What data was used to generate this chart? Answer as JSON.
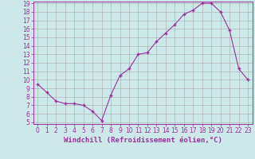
{
  "x": [
    0,
    1,
    2,
    3,
    4,
    5,
    6,
    7,
    8,
    9,
    10,
    11,
    12,
    13,
    14,
    15,
    16,
    17,
    18,
    19,
    20,
    21,
    22,
    23
  ],
  "y": [
    9.5,
    8.5,
    7.5,
    7.2,
    7.2,
    7.0,
    6.3,
    5.2,
    8.2,
    10.5,
    11.3,
    13.0,
    13.2,
    14.5,
    15.5,
    16.5,
    17.7,
    18.2,
    19.0,
    19.0,
    18.0,
    15.8,
    11.3,
    10.0
  ],
  "line_color": "#993399",
  "marker": "+",
  "marker_size": 3.5,
  "marker_lw": 1.0,
  "bg_color": "#cce8e8",
  "grid_color": "#aaaaaa",
  "xlabel": "Windchill (Refroidissement éolien,°C)",
  "xlabel_color": "#993399",
  "ylim": [
    5,
    19
  ],
  "xlim": [
    -0.5,
    23.5
  ],
  "yticks": [
    5,
    6,
    7,
    8,
    9,
    10,
    11,
    12,
    13,
    14,
    15,
    16,
    17,
    18,
    19
  ],
  "xticks": [
    0,
    1,
    2,
    3,
    4,
    5,
    6,
    7,
    8,
    9,
    10,
    11,
    12,
    13,
    14,
    15,
    16,
    17,
    18,
    19,
    20,
    21,
    22,
    23
  ],
  "tick_fontsize": 5.5,
  "xlabel_fontsize": 6.5,
  "tick_color": "#993399",
  "spine_color": "#993399",
  "linewidth": 0.8
}
